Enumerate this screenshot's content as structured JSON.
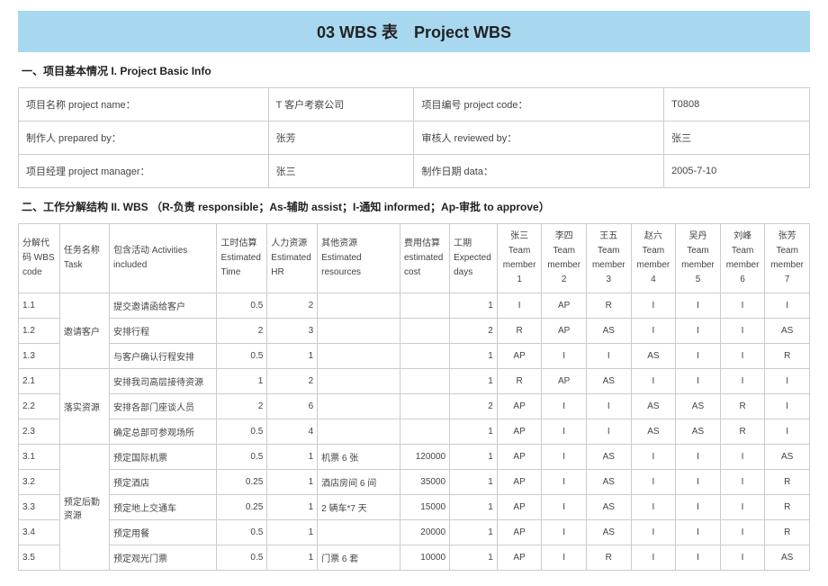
{
  "title": "03 WBS 表　Project WBS",
  "section1_heading": "一、项目基本情况 I. Project Basic Info",
  "info": {
    "project_name_label": "项目名称 project name：",
    "project_name": "T 客户考察公司",
    "project_code_label": "项目编号 project code：",
    "project_code": "T0808",
    "prepared_by_label": "制作人 prepared by：",
    "prepared_by": "张芳",
    "reviewed_by_label": "审核人 reviewed by：",
    "reviewed_by": "张三",
    "pm_label": "项目经理 project manager：",
    "pm": "张三",
    "date_label": "制作日期 data：",
    "date": "2005-7-10"
  },
  "section2_heading": "二、工作分解结构 II. WBS （R-负责 responsible；As-辅助 assist；I-通知 informed；Ap-审批 to approve）",
  "wbs_headers": {
    "code": "分解代码 WBS code",
    "task": "任务名称 Task",
    "activities": "包含活动 Activities included",
    "time": "工时估算 Estimated Time",
    "hr": "人力资源 Estimated HR",
    "resources": "其他资源 Estimated resources",
    "cost": "费用估算 estimated cost",
    "days": "工期 Expected days"
  },
  "members": [
    {
      "name": "张三",
      "label": "Team member 1"
    },
    {
      "name": "李四",
      "label": "Team member 2"
    },
    {
      "name": "王五",
      "label": "Team member 3"
    },
    {
      "name": "赵六",
      "label": "Team member 4"
    },
    {
      "name": "吴丹",
      "label": "Team member 5"
    },
    {
      "name": "刘峰",
      "label": "Team member 6"
    },
    {
      "name": "张芳",
      "label": "Team member 7"
    }
  ],
  "groups": [
    {
      "task": "邀请客户",
      "rows": [
        {
          "code": "1.1",
          "act": "提交邀请函给客户",
          "time": "0.5",
          "hr": "2",
          "res": "",
          "cost": "",
          "days": "1",
          "m": [
            "I",
            "AP",
            "R",
            "I",
            "I",
            "I",
            "I"
          ]
        },
        {
          "code": "1.2",
          "act": "安排行程",
          "time": "2",
          "hr": "3",
          "res": "",
          "cost": "",
          "days": "2",
          "m": [
            "R",
            "AP",
            "AS",
            "I",
            "I",
            "I",
            "AS"
          ]
        },
        {
          "code": "1.3",
          "act": "与客户确认行程安排",
          "time": "0.5",
          "hr": "1",
          "res": "",
          "cost": "",
          "days": "1",
          "m": [
            "AP",
            "I",
            "I",
            "AS",
            "I",
            "I",
            "R"
          ]
        }
      ]
    },
    {
      "task": "落实资源",
      "rows": [
        {
          "code": "2.1",
          "act": "安排我司高层接待资源",
          "time": "1",
          "hr": "2",
          "res": "",
          "cost": "",
          "days": "1",
          "m": [
            "R",
            "AP",
            "AS",
            "I",
            "I",
            "I",
            "I"
          ]
        },
        {
          "code": "2.2",
          "act": "安排各部门座谈人员",
          "time": "2",
          "hr": "6",
          "res": "",
          "cost": "",
          "days": "2",
          "m": [
            "AP",
            "I",
            "I",
            "AS",
            "AS",
            "R",
            "I"
          ]
        },
        {
          "code": "2.3",
          "act": "确定总部可参观场所",
          "time": "0.5",
          "hr": "4",
          "res": "",
          "cost": "",
          "days": "1",
          "m": [
            "AP",
            "I",
            "I",
            "AS",
            "AS",
            "R",
            "I"
          ]
        }
      ]
    },
    {
      "task": "预定后勤资源",
      "rows": [
        {
          "code": "3.1",
          "act": "预定国际机票",
          "time": "0.5",
          "hr": "1",
          "res": "机票 6 张",
          "cost": "120000",
          "days": "1",
          "m": [
            "AP",
            "I",
            "AS",
            "I",
            "I",
            "I",
            "AS"
          ]
        },
        {
          "code": "3.2",
          "act": "预定酒店",
          "time": "0.25",
          "hr": "1",
          "res": "酒店房间 6 间",
          "cost": "35000",
          "days": "1",
          "m": [
            "AP",
            "I",
            "AS",
            "I",
            "I",
            "I",
            "R"
          ]
        },
        {
          "code": "3.3",
          "act": "预定地上交通车",
          "time": "0.25",
          "hr": "1",
          "res": "2 辆车*7 天",
          "cost": "15000",
          "days": "1",
          "m": [
            "AP",
            "I",
            "AS",
            "I",
            "I",
            "I",
            "R"
          ]
        },
        {
          "code": "3.4",
          "act": "预定用餐",
          "time": "0.5",
          "hr": "1",
          "res": "",
          "cost": "20000",
          "days": "1",
          "m": [
            "AP",
            "I",
            "AS",
            "I",
            "I",
            "I",
            "R"
          ]
        },
        {
          "code": "3.5",
          "act": "预定观光门票",
          "time": "0.5",
          "hr": "1",
          "res": "门票 6 套",
          "cost": "10000",
          "days": "1",
          "m": [
            "AP",
            "I",
            "R",
            "I",
            "I",
            "I",
            "AS"
          ]
        }
      ]
    }
  ],
  "colors": {
    "title_bg": "#a8d8f0",
    "border": "#cccccc",
    "text": "#333333"
  }
}
